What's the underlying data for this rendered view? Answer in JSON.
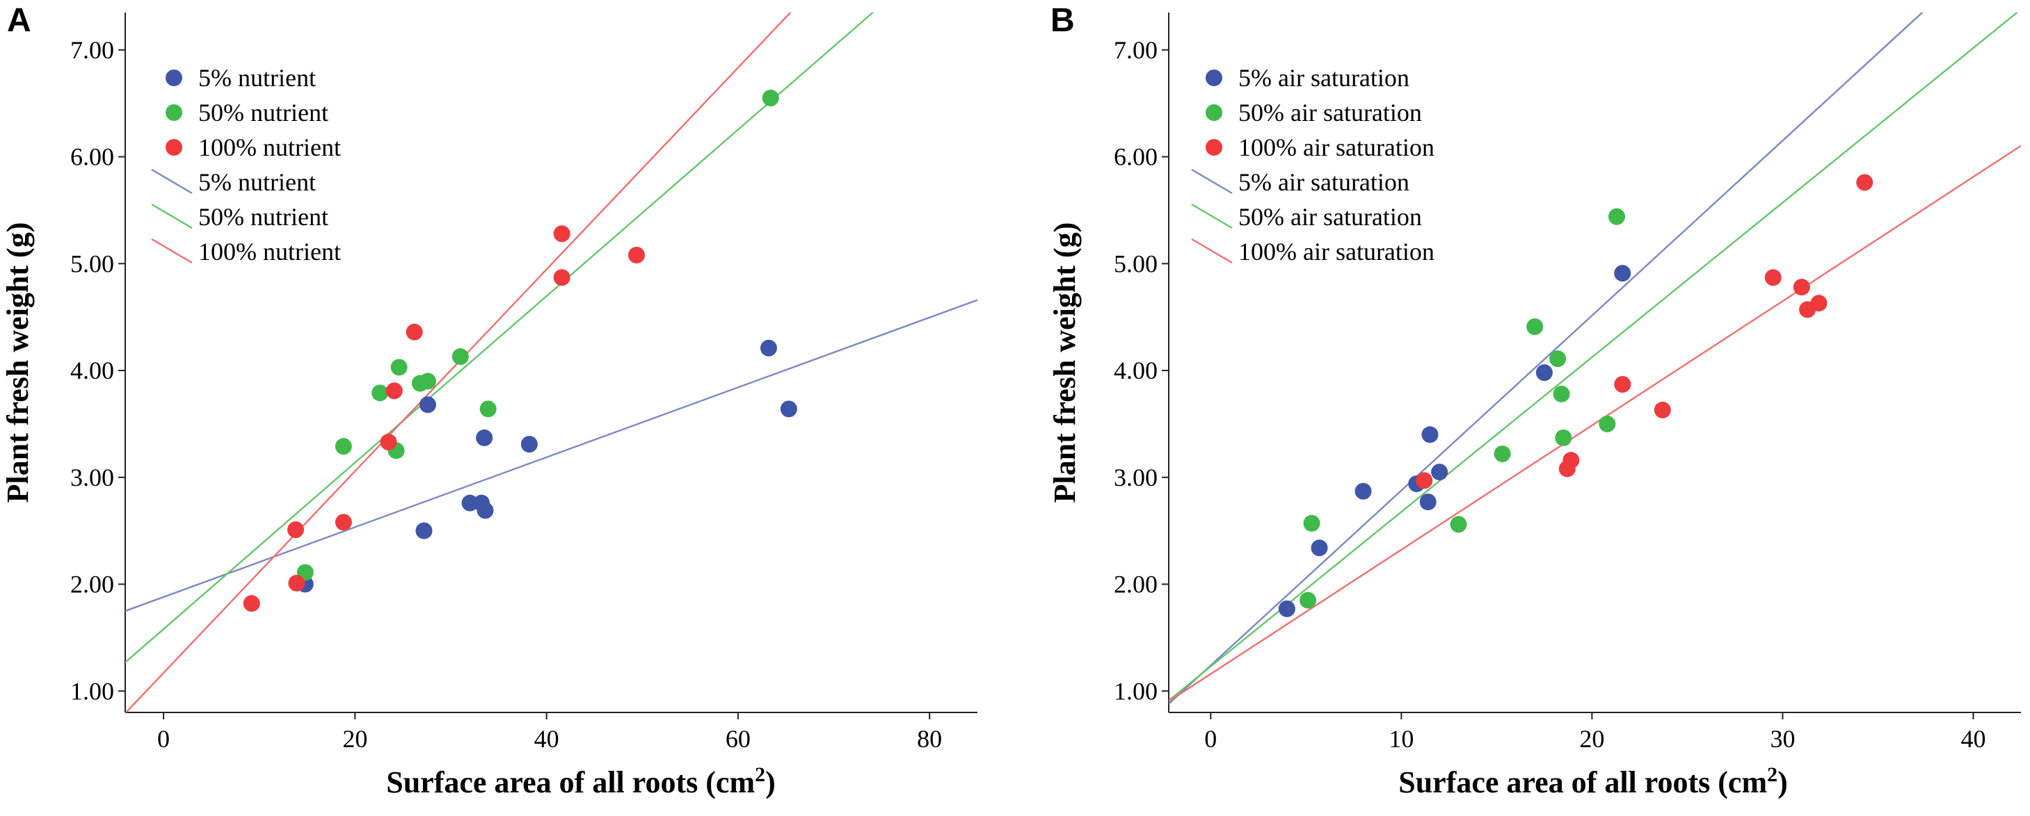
{
  "chart_data": [
    {
      "panel": "A",
      "type": "scatter",
      "xlabel": "Surface area of all roots (cm",
      "xlabel_sup": "2",
      "xlabel_end": ")",
      "ylabel": "Plant fresh weight (g)",
      "xlim": [
        -4,
        85
      ],
      "ylim": [
        0.8,
        7.35
      ],
      "xticks": [
        0,
        20,
        40,
        60,
        80
      ],
      "xtick_labels": [
        "0",
        "20",
        "40",
        "60",
        "80"
      ],
      "yticks": [
        1,
        2,
        3,
        4,
        5,
        6,
        7
      ],
      "ytick_labels": [
        "1.00",
        "2.00",
        "3.00",
        "4.00",
        "5.00",
        "6.00",
        "7.00"
      ],
      "legend": [
        {
          "kind": "marker",
          "label": "5% nutrient",
          "color": "#3f55a7"
        },
        {
          "kind": "marker",
          "label": "50% nutrient",
          "color": "#3fb94a"
        },
        {
          "kind": "marker",
          "label": "100% nutrient",
          "color": "#ee3a3d"
        },
        {
          "kind": "line",
          "label": "5% nutrient",
          "color": "#7b88c4"
        },
        {
          "kind": "line",
          "label": "50% nutrient",
          "color": "#65c66c"
        },
        {
          "kind": "line",
          "label": "100% nutrient",
          "color": "#ee6f6f"
        }
      ],
      "series": [
        {
          "name": "5% nutrient",
          "color": "#3f55a7",
          "line_color": "#7b88c4",
          "points": [
            [
              14.8,
              2.0
            ],
            [
              27.2,
              2.5
            ],
            [
              27.6,
              3.68
            ],
            [
              32.0,
              2.76
            ],
            [
              33.2,
              2.76
            ],
            [
              33.5,
              3.37
            ],
            [
              33.6,
              2.69
            ],
            [
              38.2,
              3.31
            ],
            [
              63.2,
              4.21
            ],
            [
              65.3,
              3.64
            ]
          ],
          "fit": {
            "intercept": 1.88,
            "slope": 0.0327
          }
        },
        {
          "name": "50% nutrient",
          "color": "#3fb94a",
          "line_color": "#65c66c",
          "points": [
            [
              14.8,
              2.11
            ],
            [
              18.8,
              3.29
            ],
            [
              22.6,
              3.79
            ],
            [
              24.3,
              3.25
            ],
            [
              24.6,
              4.03
            ],
            [
              26.8,
              3.88
            ],
            [
              27.6,
              3.9
            ],
            [
              31.0,
              4.13
            ],
            [
              33.9,
              3.64
            ],
            [
              63.4,
              6.55
            ]
          ],
          "fit": {
            "intercept": 1.58,
            "slope": 0.0779
          }
        },
        {
          "name": "100% nutrient",
          "color": "#ee3a3d",
          "line_color": "#ee6f6f",
          "points": [
            [
              9.2,
              1.82
            ],
            [
              13.8,
              2.51
            ],
            [
              13.9,
              2.01
            ],
            [
              18.8,
              2.58
            ],
            [
              23.5,
              3.33
            ],
            [
              24.1,
              3.81
            ],
            [
              26.2,
              4.36
            ],
            [
              41.6,
              5.28
            ],
            [
              41.6,
              4.87
            ],
            [
              49.4,
              5.08
            ]
          ],
          "fit": {
            "intercept": 1.17,
            "slope": 0.0944
          }
        }
      ]
    },
    {
      "panel": "B",
      "type": "scatter",
      "xlabel": "Surface area of all roots (cm",
      "xlabel_sup": "2",
      "xlabel_end": ")",
      "ylabel": "Plant fresh weight (g)",
      "xlim": [
        -2.2,
        42.5
      ],
      "ylim": [
        0.8,
        7.35
      ],
      "xticks": [
        0,
        10,
        20,
        30,
        40
      ],
      "xtick_labels": [
        "0",
        "10",
        "20",
        "30",
        "40"
      ],
      "yticks": [
        1,
        2,
        3,
        4,
        5,
        6,
        7
      ],
      "ytick_labels": [
        "1.00",
        "2.00",
        "3.00",
        "4.00",
        "5.00",
        "6.00",
        "7.00"
      ],
      "legend": [
        {
          "kind": "marker",
          "label": "5% air saturation",
          "color": "#3f55a7"
        },
        {
          "kind": "marker",
          "label": "50% air saturation",
          "color": "#3fb94a"
        },
        {
          "kind": "marker",
          "label": "100% air saturation",
          "color": "#ee3a3d"
        },
        {
          "kind": "line",
          "label": "5% air saturation",
          "color": "#7b88c4"
        },
        {
          "kind": "line",
          "label": "50% air saturation",
          "color": "#65c66c"
        },
        {
          "kind": "line",
          "label": "100% air saturation",
          "color": "#ee6f6f"
        }
      ],
      "series": [
        {
          "name": "5% air saturation",
          "color": "#3f55a7",
          "line_color": "#7b88c4",
          "points": [
            [
              4.0,
              1.77
            ],
            [
              5.7,
              2.34
            ],
            [
              8.0,
              2.87
            ],
            [
              10.8,
              2.94
            ],
            [
              11.4,
              2.77
            ],
            [
              11.5,
              3.4
            ],
            [
              12.0,
              3.05
            ],
            [
              17.5,
              3.98
            ],
            [
              21.6,
              4.91
            ]
          ],
          "fit": {
            "intercept": 1.24,
            "slope": 0.1637
          }
        },
        {
          "name": "50% air saturation",
          "color": "#3fb94a",
          "line_color": "#65c66c",
          "points": [
            [
              5.1,
              1.85
            ],
            [
              5.3,
              2.57
            ],
            [
              13.0,
              2.56
            ],
            [
              15.3,
              3.22
            ],
            [
              17.0,
              4.41
            ],
            [
              18.2,
              4.11
            ],
            [
              18.4,
              3.78
            ],
            [
              18.5,
              3.37
            ],
            [
              20.8,
              3.5
            ],
            [
              21.3,
              5.44
            ]
          ],
          "fit": {
            "intercept": 1.23,
            "slope": 0.1447
          }
        },
        {
          "name": "100% air saturation",
          "color": "#ee3a3d",
          "line_color": "#ee6f6f",
          "points": [
            [
              11.2,
              2.97
            ],
            [
              18.7,
              3.08
            ],
            [
              18.9,
              3.16
            ],
            [
              21.6,
              3.87
            ],
            [
              23.7,
              3.63
            ],
            [
              29.5,
              4.87
            ],
            [
              31.0,
              4.78
            ],
            [
              31.3,
              4.57
            ],
            [
              31.9,
              4.63
            ],
            [
              34.3,
              5.76
            ]
          ],
          "fit": {
            "intercept": 1.16,
            "slope": 0.1163
          }
        }
      ]
    }
  ]
}
